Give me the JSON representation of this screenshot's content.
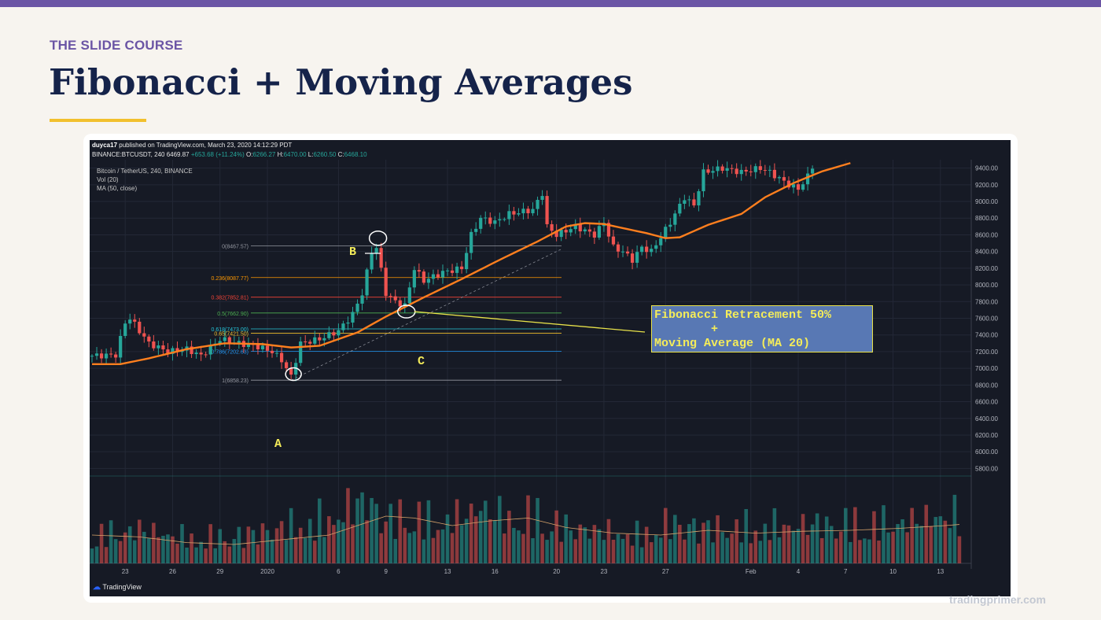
{
  "slide": {
    "kicker": "THE SLIDE COURSE",
    "title": "Fibonacci + Moving Averages",
    "watermark": "tradingprimer.com"
  },
  "chart_header": {
    "author": "duyca17",
    "published": "published on TradingView.com, March 23, 2020 14:12:29 PDT",
    "symbol_line_left": "BINANCE:BTCUSDT, 240",
    "price": "6469.87",
    "change": "+653.68 (+11.24%)",
    "ohlc_label_o": "O:",
    "ohlc_o": "6266.27",
    "ohlc_label_h": "H:",
    "ohlc_h": "6470.00",
    "ohlc_label_l": "L:",
    "ohlc_l": "6260.50",
    "ohlc_label_c": "C:",
    "ohlc_c": "6468.10"
  },
  "legend": {
    "line1": "Bitcoin / TetherUS, 240, BINANCE",
    "line2": "Vol (20)",
    "line3": "MA (50, close)"
  },
  "tradingview": {
    "brand": "TradingView"
  },
  "annotation": {
    "text": "Fibonacci Retracement 50%\n        +\nMoving Average (MA 20)",
    "point_a": "A",
    "point_b": "B",
    "point_c": "C"
  },
  "colors": {
    "background": "#161a25",
    "up": "#26a69a",
    "down": "#ef5350",
    "ma": "#ff7f1e",
    "annotation_fill": "#5878b4",
    "annotation_text": "#f4ec5a"
  },
  "chart_data": {
    "type": "candlestick",
    "ylim": [
      5700,
      9500
    ],
    "y_ticks": [
      "9400.00",
      "9200.00",
      "9000.00",
      "8800.00",
      "8600.00",
      "8400.00",
      "8200.00",
      "8000.00",
      "7800.00",
      "7600.00",
      "7400.00",
      "7200.00",
      "7000.00",
      "6800.00",
      "6600.00",
      "6400.00",
      "6200.00",
      "6000.00",
      "5800.00"
    ],
    "y_tick_values": [
      9400,
      9200,
      9000,
      8800,
      8600,
      8400,
      8200,
      8000,
      7800,
      7600,
      7400,
      7200,
      7000,
      6800,
      6600,
      6400,
      6200,
      6000,
      5800
    ],
    "x_ticks": [
      "23",
      "26",
      "29",
      "2020",
      "6",
      "9",
      "13",
      "16",
      "20",
      "23",
      "27",
      "Feb",
      "4",
      "7",
      "10",
      "13"
    ],
    "x_tick_index": [
      7,
      17,
      27,
      37,
      52,
      62,
      75,
      85,
      98,
      108,
      121,
      139,
      149,
      159,
      169,
      179
    ],
    "fib_levels": [
      {
        "label": "0(8467.57)",
        "value": 8467.57,
        "color": "#9598a1"
      },
      {
        "label": "0.236(8087.77)",
        "value": 8087.77,
        "color": "#ff9800"
      },
      {
        "label": "0.382(7852.81)",
        "value": 7852.81,
        "color": "#f44336"
      },
      {
        "label": "0.5(7662.90)",
        "value": 7662.9,
        "color": "#4caf50"
      },
      {
        "label": "0.618(7473.00)",
        "value": 7473.0,
        "color": "#26c6da"
      },
      {
        "label": "0.65(7421.50)",
        "value": 7421.5,
        "color": "#f2c02d"
      },
      {
        "label": "0.786(7202.63)",
        "value": 7202.63,
        "color": "#2196f3"
      },
      {
        "label": "1(6858.23)",
        "value": 6858.23,
        "color": "#9598a1"
      }
    ],
    "close_anchors": [
      [
        0,
        7150
      ],
      [
        5,
        7160
      ],
      [
        7,
        7550
      ],
      [
        8,
        7600
      ],
      [
        10,
        7450
      ],
      [
        12,
        7300
      ],
      [
        16,
        7200
      ],
      [
        20,
        7230
      ],
      [
        23,
        7150
      ],
      [
        27,
        7350
      ],
      [
        31,
        7300
      ],
      [
        35,
        7260
      ],
      [
        38,
        7200
      ],
      [
        40,
        7100
      ],
      [
        42,
        6900
      ],
      [
        44,
        7300
      ],
      [
        48,
        7350
      ],
      [
        52,
        7450
      ],
      [
        55,
        7650
      ],
      [
        57,
        7900
      ],
      [
        59,
        8400
      ],
      [
        60,
        8450
      ],
      [
        62,
        7900
      ],
      [
        64,
        7800
      ],
      [
        66,
        7750
      ],
      [
        68,
        8200
      ],
      [
        70,
        8050
      ],
      [
        74,
        8150
      ],
      [
        78,
        8200
      ],
      [
        80,
        8600
      ],
      [
        82,
        8800
      ],
      [
        85,
        8750
      ],
      [
        88,
        8850
      ],
      [
        93,
        8900
      ],
      [
        95,
        9100
      ],
      [
        96,
        8700
      ],
      [
        98,
        8600
      ],
      [
        102,
        8700
      ],
      [
        106,
        8600
      ],
      [
        108,
        8750
      ],
      [
        110,
        8450
      ],
      [
        112,
        8400
      ],
      [
        114,
        8300
      ],
      [
        116,
        8450
      ],
      [
        118,
        8400
      ],
      [
        122,
        8750
      ],
      [
        125,
        9050
      ],
      [
        127,
        8950
      ],
      [
        129,
        9350
      ],
      [
        133,
        9400
      ],
      [
        137,
        9350
      ],
      [
        141,
        9400
      ],
      [
        143,
        9350
      ],
      [
        147,
        9200
      ],
      [
        149,
        9150
      ],
      [
        151,
        9300
      ],
      [
        152,
        9420
      ]
    ],
    "ma_anchors": [
      [
        0,
        7050
      ],
      [
        6,
        7050
      ],
      [
        12,
        7120
      ],
      [
        20,
        7230
      ],
      [
        28,
        7300
      ],
      [
        36,
        7290
      ],
      [
        42,
        7250
      ],
      [
        48,
        7270
      ],
      [
        56,
        7430
      ],
      [
        62,
        7620
      ],
      [
        70,
        7850
      ],
      [
        78,
        8070
      ],
      [
        86,
        8300
      ],
      [
        94,
        8520
      ],
      [
        100,
        8700
      ],
      [
        104,
        8740
      ],
      [
        108,
        8730
      ],
      [
        112,
        8680
      ],
      [
        117,
        8620
      ],
      [
        121,
        8560
      ],
      [
        124,
        8570
      ],
      [
        130,
        8720
      ],
      [
        137,
        8850
      ],
      [
        142,
        9050
      ],
      [
        148,
        9220
      ],
      [
        154,
        9360
      ],
      [
        160,
        9460
      ]
    ],
    "volume_anchors": [
      [
        0,
        0.35
      ],
      [
        10,
        0.42
      ],
      [
        20,
        0.32
      ],
      [
        30,
        0.34
      ],
      [
        40,
        0.45
      ],
      [
        50,
        0.55
      ],
      [
        58,
        0.8
      ],
      [
        62,
        0.55
      ],
      [
        68,
        0.62
      ],
      [
        72,
        0.5
      ],
      [
        78,
        0.58
      ],
      [
        82,
        0.7
      ],
      [
        88,
        0.55
      ],
      [
        94,
        0.6
      ],
      [
        100,
        0.45
      ],
      [
        108,
        0.4
      ],
      [
        115,
        0.35
      ],
      [
        122,
        0.5
      ],
      [
        130,
        0.45
      ],
      [
        140,
        0.45
      ],
      [
        150,
        0.48
      ],
      [
        160,
        0.5
      ],
      [
        170,
        0.5
      ],
      [
        180,
        0.6
      ],
      [
        185,
        0.55
      ]
    ],
    "volume_ma_anchors": [
      [
        0,
        0.3
      ],
      [
        10,
        0.28
      ],
      [
        20,
        0.22
      ],
      [
        30,
        0.2
      ],
      [
        40,
        0.25
      ],
      [
        50,
        0.3
      ],
      [
        56,
        0.4
      ],
      [
        62,
        0.5
      ],
      [
        68,
        0.48
      ],
      [
        76,
        0.4
      ],
      [
        84,
        0.45
      ],
      [
        92,
        0.48
      ],
      [
        100,
        0.38
      ],
      [
        110,
        0.32
      ],
      [
        120,
        0.3
      ],
      [
        130,
        0.35
      ],
      [
        140,
        0.32
      ],
      [
        150,
        0.34
      ],
      [
        160,
        0.35
      ],
      [
        170,
        0.37
      ],
      [
        180,
        0.4
      ],
      [
        185,
        0.42
      ]
    ],
    "n_bars": 186,
    "last_price_bar": 152
  }
}
